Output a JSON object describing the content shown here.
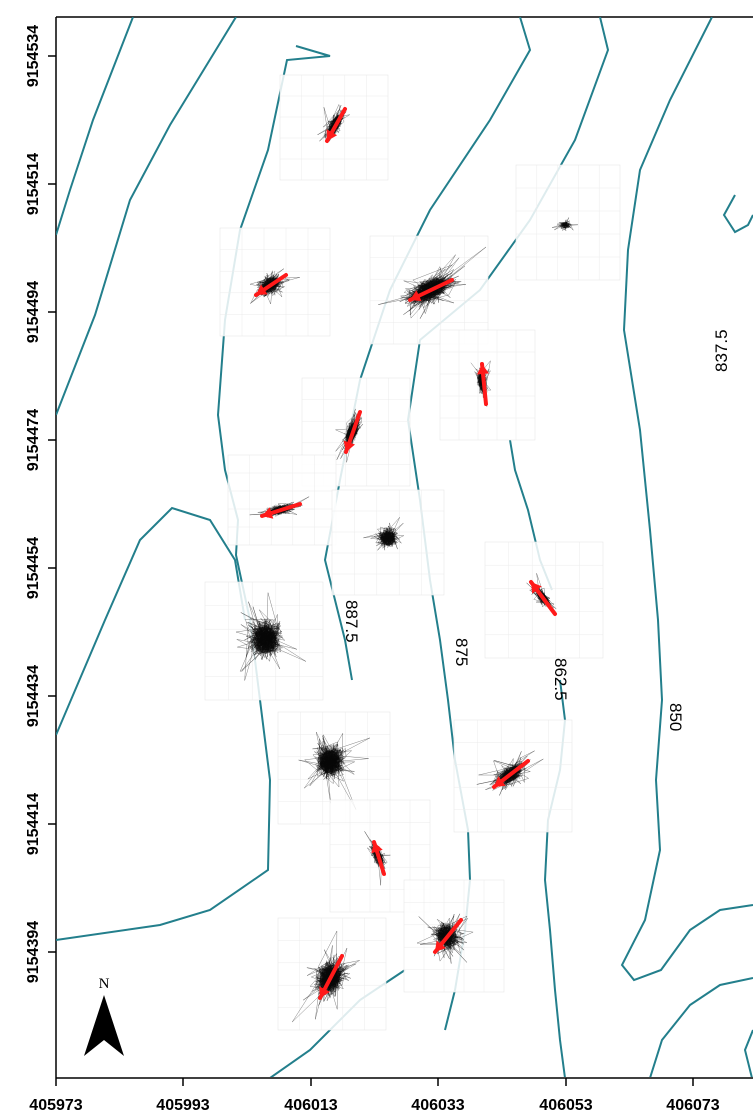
{
  "map": {
    "x_ticks": [
      "405973",
      "405993",
      "406013",
      "406033",
      "406053",
      "406073"
    ],
    "y_ticks": [
      "9154534",
      "9154514",
      "9154494",
      "9154474",
      "9154454",
      "9154434",
      "9154414",
      "9154394"
    ],
    "contour_labels": [
      "837.5",
      "850",
      "862.5",
      "875",
      "887.5"
    ],
    "north_label": "N",
    "colors": {
      "contour": "#237f8c",
      "arrow": "#ff1a1a",
      "trace": "#111111",
      "frame": "#000000"
    },
    "trace_icon": "movement-trace-icon",
    "arrow_icon": "direction-arrow-icon"
  }
}
